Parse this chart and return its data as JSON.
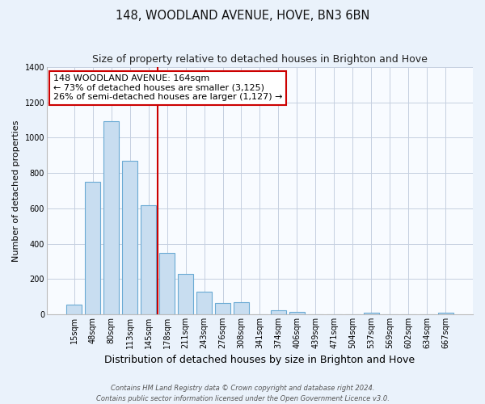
{
  "title": "148, WOODLAND AVENUE, HOVE, BN3 6BN",
  "subtitle": "Size of property relative to detached houses in Brighton and Hove",
  "xlabel": "Distribution of detached houses by size in Brighton and Hove",
  "ylabel": "Number of detached properties",
  "categories": [
    "15sqm",
    "48sqm",
    "80sqm",
    "113sqm",
    "145sqm",
    "178sqm",
    "211sqm",
    "243sqm",
    "276sqm",
    "308sqm",
    "341sqm",
    "374sqm",
    "406sqm",
    "439sqm",
    "471sqm",
    "504sqm",
    "537sqm",
    "569sqm",
    "602sqm",
    "634sqm",
    "667sqm"
  ],
  "values": [
    55,
    750,
    1095,
    870,
    620,
    350,
    230,
    130,
    65,
    70,
    0,
    25,
    15,
    0,
    0,
    0,
    10,
    0,
    0,
    0,
    10
  ],
  "bar_color": "#c8ddf0",
  "bar_edge_color": "#6aaad4",
  "vline_x": 4.5,
  "vline_color": "#cc0000",
  "annotation_line1": "148 WOODLAND AVENUE: 164sqm",
  "annotation_line2": "← 73% of detached houses are smaller (3,125)",
  "annotation_line3": "26% of semi-detached houses are larger (1,127) →",
  "annotation_box_color": "#ffffff",
  "annotation_box_edge": "#cc0000",
  "ylim": [
    0,
    1400
  ],
  "yticks": [
    0,
    200,
    400,
    600,
    800,
    1000,
    1200,
    1400
  ],
  "footer1": "Contains HM Land Registry data © Crown copyright and database right 2024.",
  "footer2": "Contains public sector information licensed under the Open Government Licence v3.0.",
  "background_color": "#eaf2fb",
  "plot_background": "#f8fbff",
  "title_fontsize": 10.5,
  "subtitle_fontsize": 9,
  "ylabel_fontsize": 8,
  "xlabel_fontsize": 9,
  "tick_fontsize": 7,
  "annotation_fontsize": 8
}
